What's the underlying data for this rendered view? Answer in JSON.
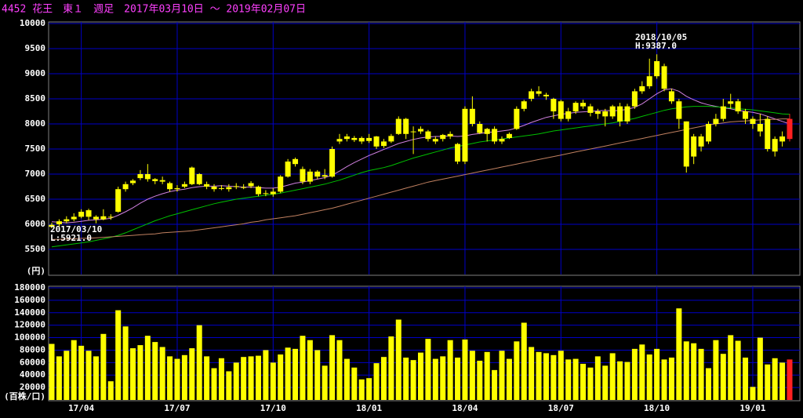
{
  "chart_data": [
    {
      "type": "candlestick",
      "title": "4452 花王　東１　週足　2017年03月10日 ～ 2019年02月07日",
      "ylabel": "(円)",
      "ylim": [
        5000,
        10000
      ],
      "yticks": [
        5500,
        6000,
        6500,
        7000,
        7500,
        8000,
        8500,
        9000,
        9500,
        10000
      ],
      "grid": true,
      "grid_color": "#0000c8",
      "color": "#ffff00",
      "last_color": "#ff2020",
      "annotations": [
        {
          "date": "2018/10/05",
          "text": "H:9387.0"
        },
        {
          "date": "2017/03/10",
          "text": "L:5921.0"
        }
      ],
      "open": [
        5950,
        6000,
        6060,
        6100,
        6150,
        6280,
        6150,
        6100,
        6150,
        6250,
        6700,
        6820,
        6920,
        7000,
        6900,
        6880,
        6820,
        6700,
        6750,
        6800,
        7000,
        6800,
        6750,
        6720,
        6700,
        6760,
        6740,
        6760,
        6750,
        6620,
        6600,
        6650,
        6950,
        7300,
        7100,
        6850,
        7050,
        6950,
        6950,
        7650,
        7750,
        7680,
        7720,
        7660,
        7750,
        7560,
        7650,
        7800,
        8100,
        7850,
        7850,
        7850,
        7650,
        7700,
        7750,
        7600,
        7250,
        8300,
        8000,
        7800,
        7900,
        7650,
        7720,
        7900,
        8300,
        8500,
        8650,
        8580,
        8500,
        8450,
        8100,
        8250,
        8420,
        8350,
        8200,
        8250,
        8150,
        8350,
        8050,
        8350,
        8650,
        8750,
        8950,
        9150,
        8650,
        8450,
        8050,
        7350,
        7750,
        7650,
        8000,
        8100,
        8400,
        8450,
        8250,
        8100,
        8000,
        8100,
        7450,
        7750,
        8100
      ],
      "high": [
        6030,
        6100,
        6160,
        6220,
        6300,
        6310,
        6180,
        6300,
        6200,
        6750,
        6850,
        6900,
        7080,
        7200,
        6920,
        6950,
        6850,
        6780,
        6850,
        7150,
        7020,
        6850,
        6800,
        6780,
        6800,
        6820,
        6800,
        6860,
        6770,
        6680,
        6720,
        6980,
        7300,
        7330,
        7150,
        7100,
        7080,
        7100,
        7550,
        7800,
        7800,
        7760,
        7750,
        7800,
        7760,
        7700,
        7800,
        8150,
        8120,
        7950,
        7950,
        7880,
        7750,
        7800,
        7850,
        7620,
        8350,
        8550,
        8050,
        7920,
        7950,
        7750,
        7830,
        8350,
        8480,
        8700,
        8750,
        8620,
        8520,
        8480,
        8320,
        8450,
        8480,
        8400,
        8300,
        8300,
        8380,
        8420,
        8400,
        8700,
        8850,
        9300,
        9387,
        9200,
        8700,
        8500,
        8050,
        7800,
        7800,
        8050,
        8200,
        8500,
        8600,
        8500,
        8300,
        8150,
        8200,
        8150,
        7750,
        7850,
        8200
      ],
      "low": [
        5921,
        5960,
        6020,
        6060,
        6120,
        6080,
        6020,
        6080,
        6090,
        6230,
        6650,
        6780,
        6880,
        6850,
        6800,
        6800,
        6650,
        6650,
        6720,
        6780,
        6780,
        6700,
        6650,
        6680,
        6650,
        6700,
        6700,
        6720,
        6560,
        6560,
        6550,
        6620,
        6930,
        7150,
        6800,
        6800,
        6900,
        6900,
        6930,
        7600,
        7650,
        7640,
        7600,
        7620,
        7500,
        7520,
        7620,
        7780,
        7700,
        7400,
        7800,
        7650,
        7600,
        7650,
        7700,
        7200,
        7200,
        7950,
        7800,
        7650,
        7600,
        7600,
        7700,
        7880,
        8250,
        8450,
        8550,
        8480,
        8100,
        8050,
        8050,
        8200,
        8300,
        8150,
        8100,
        7950,
        8100,
        7950,
        8000,
        8300,
        8600,
        8700,
        8900,
        8650,
        8400,
        7900,
        7030,
        7200,
        7450,
        7600,
        7950,
        8050,
        8300,
        8200,
        8000,
        7900,
        7750,
        7450,
        7350,
        7550,
        7650
      ],
      "close": [
        5990,
        6060,
        6100,
        6150,
        6250,
        6150,
        6100,
        6160,
        6140,
        6700,
        6800,
        6870,
        7000,
        6900,
        6860,
        6850,
        6700,
        6720,
        6800,
        7130,
        6800,
        6750,
        6700,
        6720,
        6740,
        6750,
        6730,
        6820,
        6600,
        6620,
        6650,
        6950,
        7250,
        7200,
        6850,
        7050,
        6950,
        6980,
        7500,
        7700,
        7700,
        7720,
        7650,
        7720,
        7550,
        7650,
        7760,
        8100,
        7800,
        7850,
        7900,
        7700,
        7700,
        7780,
        7800,
        7250,
        8300,
        8000,
        7820,
        7900,
        7650,
        7700,
        7800,
        8300,
        8450,
        8650,
        8600,
        8550,
        8250,
        8100,
        8250,
        8420,
        8350,
        8220,
        8250,
        8150,
        8350,
        8050,
        8350,
        8650,
        8750,
        8950,
        9250,
        8700,
        8450,
        8100,
        7150,
        7750,
        7550,
        8000,
        8100,
        8350,
        8450,
        8250,
        8100,
        8000,
        7850,
        7500,
        7700,
        7650,
        7700
      ],
      "series": [
        {
          "color": "#d080e0",
          "values": [
            6050,
            6040,
            6030,
            6040,
            6060,
            6080,
            6090,
            6100,
            6120,
            6180,
            6250,
            6330,
            6420,
            6500,
            6560,
            6610,
            6650,
            6680,
            6700,
            6730,
            6750,
            6760,
            6760,
            6770,
            6760,
            6750,
            6740,
            6740,
            6730,
            6720,
            6720,
            6740,
            6780,
            6820,
            6840,
            6870,
            6900,
            6930,
            6980,
            7060,
            7150,
            7230,
            7300,
            7370,
            7430,
            7490,
            7550,
            7610,
            7650,
            7690,
            7720,
            7740,
            7750,
            7750,
            7760,
            7750,
            7760,
            7790,
            7810,
            7830,
            7840,
            7860,
            7880,
            7920,
            7970,
            8030,
            8080,
            8130,
            8160,
            8190,
            8210,
            8230,
            8240,
            8250,
            8260,
            8270,
            8260,
            8270,
            8290,
            8330,
            8400,
            8500,
            8600,
            8680,
            8700,
            8650,
            8550,
            8480,
            8420,
            8380,
            8350,
            8320,
            8300,
            8270,
            8250,
            8230,
            8200,
            8150,
            8100,
            8050,
            8000
          ]
        },
        {
          "color": "#00c000",
          "values": [
            5550,
            5570,
            5590,
            5610,
            5630,
            5650,
            5680,
            5710,
            5740,
            5780,
            5830,
            5890,
            5950,
            6010,
            6070,
            6120,
            6170,
            6210,
            6250,
            6290,
            6330,
            6370,
            6410,
            6440,
            6470,
            6500,
            6520,
            6540,
            6560,
            6580,
            6600,
            6620,
            6650,
            6680,
            6710,
            6740,
            6770,
            6800,
            6840,
            6880,
            6930,
            6980,
            7030,
            7070,
            7100,
            7130,
            7170,
            7220,
            7270,
            7320,
            7360,
            7400,
            7440,
            7480,
            7520,
            7550,
            7580,
            7610,
            7640,
            7660,
            7680,
            7700,
            7720,
            7740,
            7760,
            7780,
            7800,
            7830,
            7860,
            7880,
            7900,
            7920,
            7940,
            7960,
            7980,
            8000,
            8020,
            8050,
            8080,
            8110,
            8150,
            8190,
            8230,
            8270,
            8300,
            8320,
            8340,
            8350,
            8350,
            8350,
            8340,
            8330,
            8320,
            8300,
            8290,
            8280,
            8260,
            8240,
            8220,
            8200,
            8190
          ]
        },
        {
          "color": "#c08060",
          "values": [
            5700,
            5700,
            5710,
            5710,
            5720,
            5720,
            5730,
            5740,
            5750,
            5760,
            5770,
            5780,
            5790,
            5800,
            5810,
            5830,
            5840,
            5850,
            5860,
            5870,
            5890,
            5910,
            5930,
            5950,
            5970,
            5990,
            6010,
            6040,
            6060,
            6090,
            6110,
            6130,
            6150,
            6170,
            6200,
            6230,
            6260,
            6290,
            6320,
            6360,
            6400,
            6440,
            6480,
            6520,
            6560,
            6600,
            6640,
            6680,
            6720,
            6760,
            6800,
            6840,
            6870,
            6900,
            6930,
            6960,
            6990,
            7020,
            7050,
            7080,
            7110,
            7140,
            7170,
            7200,
            7230,
            7260,
            7290,
            7320,
            7350,
            7380,
            7410,
            7440,
            7470,
            7500,
            7530,
            7560,
            7590,
            7620,
            7650,
            7680,
            7710,
            7740,
            7770,
            7800,
            7830,
            7860,
            7890,
            7920,
            7950,
            7980,
            8000,
            8020,
            8040,
            8050,
            8060,
            8070,
            8080,
            8090,
            8090,
            8100,
            8100
          ]
        }
      ]
    },
    {
      "type": "bar",
      "ylabel": "(百株/口)",
      "ylim": [
        0,
        180000
      ],
      "yticks": [
        20000,
        40000,
        60000,
        80000,
        100000,
        120000,
        140000,
        160000,
        180000
      ],
      "grid": true,
      "grid_color": "#0000c8",
      "color": "#ffff00",
      "last_color": "#ff2020",
      "categories": [
        null,
        null,
        null,
        null,
        "17/04",
        null,
        null,
        null,
        null,
        null,
        null,
        null,
        null,
        null,
        null,
        null,
        null,
        "17/07",
        null,
        null,
        null,
        null,
        null,
        null,
        null,
        null,
        null,
        null,
        null,
        null,
        "17/10",
        null,
        null,
        null,
        null,
        null,
        null,
        null,
        null,
        null,
        null,
        null,
        null,
        "18/01",
        null,
        null,
        null,
        null,
        null,
        null,
        null,
        null,
        null,
        null,
        null,
        null,
        "18/04",
        null,
        null,
        null,
        null,
        null,
        null,
        null,
        null,
        null,
        null,
        null,
        null,
        "18/07",
        null,
        null,
        null,
        null,
        null,
        null,
        null,
        null,
        null,
        null,
        null,
        null,
        "18/10",
        null,
        null,
        null,
        null,
        null,
        null,
        null,
        null,
        null,
        null,
        null,
        null,
        "19/01",
        null,
        null,
        null,
        null,
        null
      ],
      "values": [
        90000,
        70000,
        79000,
        96000,
        87000,
        79000,
        70000,
        106000,
        30000,
        144000,
        118000,
        83000,
        88000,
        103000,
        93000,
        85000,
        70000,
        66000,
        72000,
        83000,
        120000,
        70000,
        51000,
        67000,
        46000,
        60000,
        69000,
        70000,
        71000,
        80000,
        60000,
        73000,
        84000,
        82000,
        103000,
        96000,
        80000,
        55000,
        104000,
        96000,
        66000,
        52000,
        33000,
        35000,
        59000,
        69000,
        102000,
        129000,
        68000,
        64000,
        76000,
        98000,
        66000,
        70000,
        96000,
        68000,
        97000,
        79000,
        63000,
        77000,
        48000,
        79000,
        66000,
        94000,
        124000,
        85000,
        77000,
        75000,
        72000,
        79000,
        65000,
        66000,
        58000,
        52000,
        70000,
        55000,
        75000,
        62000,
        61000,
        82000,
        89000,
        73000,
        82000,
        65000,
        68000,
        147000,
        94000,
        91000,
        82000,
        51000,
        96000,
        74000,
        104000,
        95000,
        68000,
        21000,
        100000,
        57000,
        67000,
        60000,
        65000
      ]
    }
  ]
}
